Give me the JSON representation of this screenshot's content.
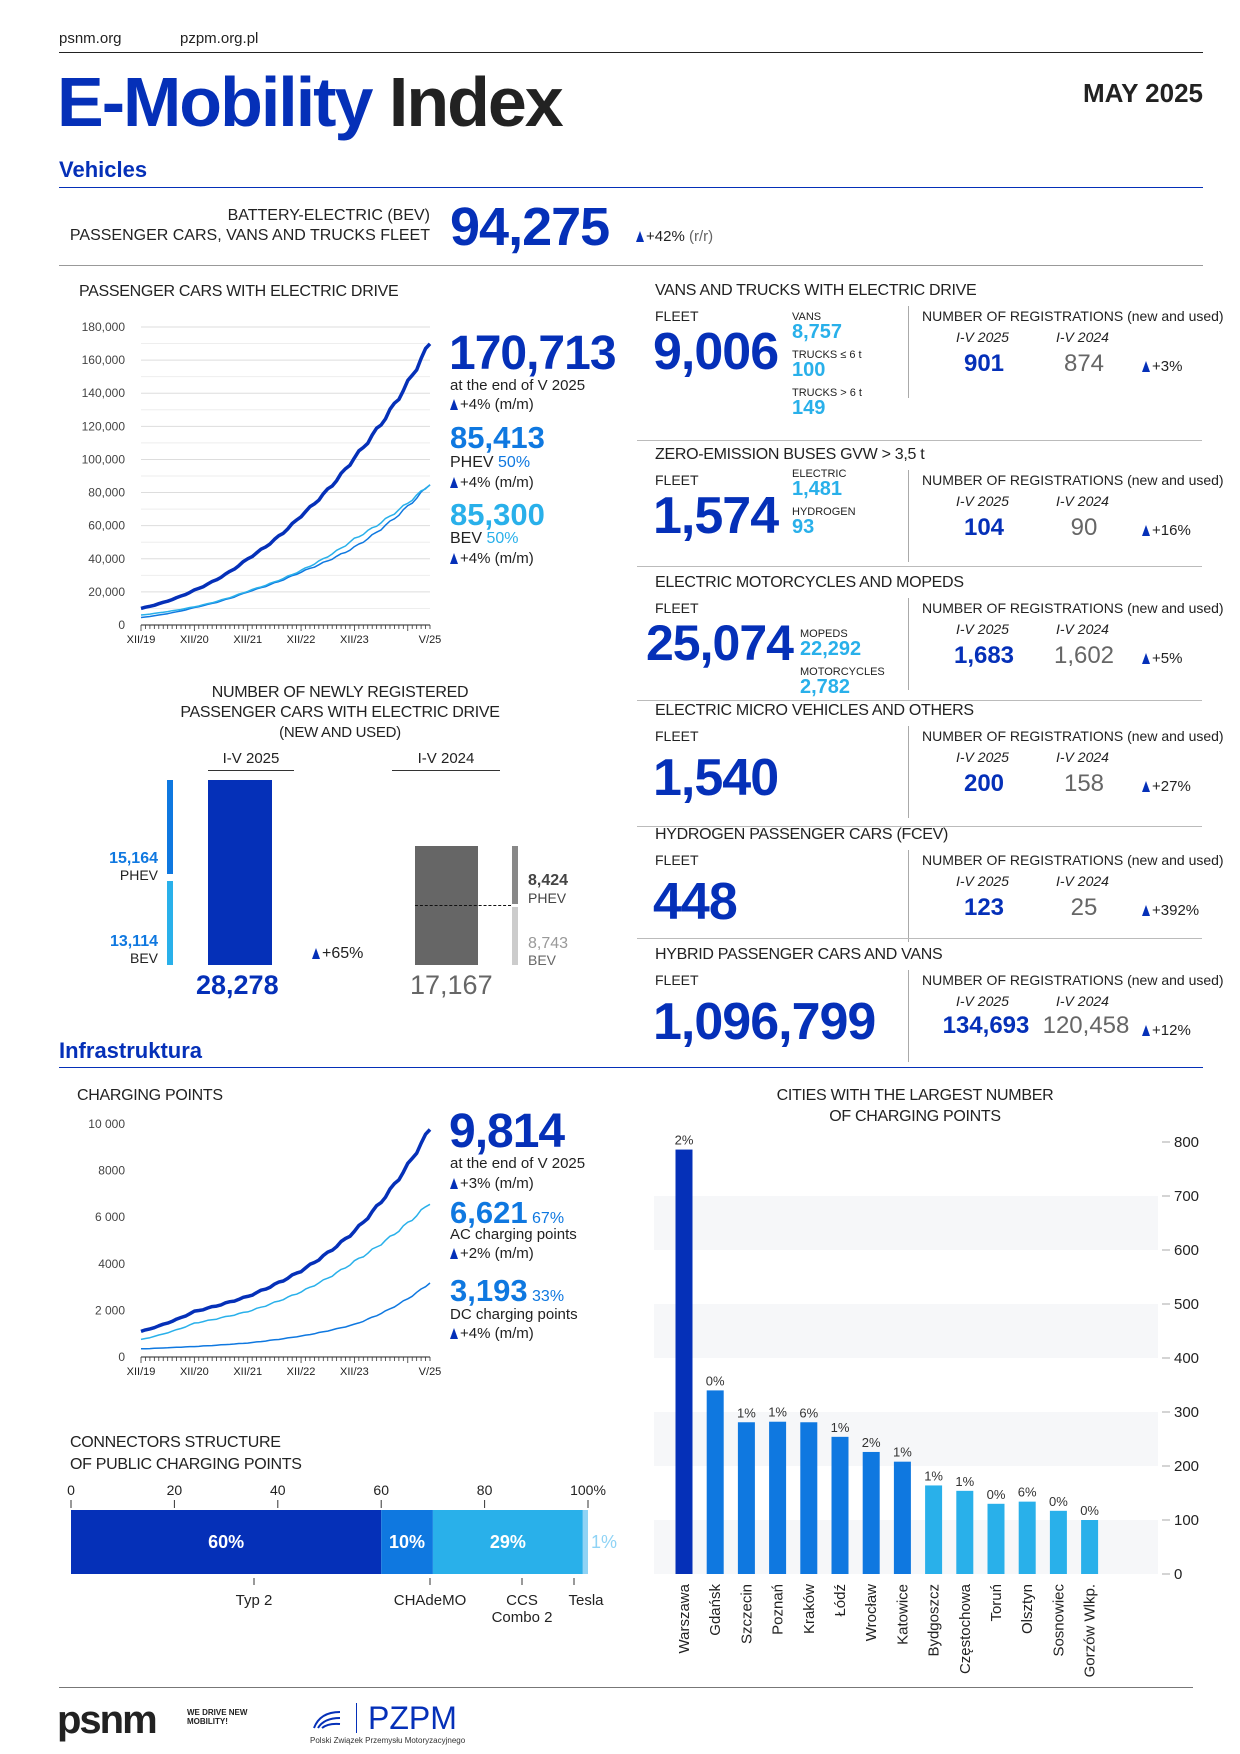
{
  "header": {
    "link1": "psnm.org",
    "link2": "pzpm.org.pl",
    "title_part1": "E-Mobility",
    "title_part2": "Index",
    "date": "MAY 2025"
  },
  "vehicles": {
    "heading": "Vehicles",
    "bev_fleet_label1": "BATTERY-ELECTRIC (BEV)",
    "bev_fleet_label2": "PASSENGER CARS, VANS AND TRUCKS FLEET",
    "bev_fleet_value": "94,275",
    "bev_fleet_change": "+42%",
    "bev_fleet_change_unit": "(r/r)"
  },
  "passenger": {
    "title": "PASSENGER CARS WITH ELECTRIC DRIVE",
    "total": "170,713",
    "total_note": "at the end of V 2025",
    "total_change": "+4% (m/m)",
    "phev": "85,413",
    "phev_label": "PHEV",
    "phev_share": "50%",
    "phev_change": "+4% (m/m)",
    "bev": "85,300",
    "bev_label": "BEV",
    "bev_share": "50%",
    "bev_change": "+4% (m/m)"
  },
  "new_reg": {
    "title1": "NUMBER OF NEWLY REGISTERED",
    "title2": "PASSENGER CARS WITH ELECTRIC DRIVE",
    "title3": "(NEW AND USED)",
    "period1": "I-V 2025",
    "period2": "I-V 2024",
    "p1_phev": "15,164",
    "p1_bev": "13,114",
    "p1_total": "28,278",
    "p1_phev_label": "PHEV",
    "p1_bev_label": "BEV",
    "change": "+65%",
    "p2_phev": "8,424",
    "p2_bev": "8,743",
    "p2_total": "17,167",
    "p2_phev_label": "PHEV",
    "p2_bev_label": "BEV"
  },
  "panels": [
    {
      "title": "VANS AND TRUCKS WITH ELECTRIC DRIVE",
      "fleet_label": "FLEET",
      "fleet": "9,006",
      "sub": [
        {
          "label": "VANS",
          "value": "8,757"
        },
        {
          "label": "TRUCKS ≤ 6 t",
          "value": "100"
        },
        {
          "label": "TRUCKS > 6 t",
          "value": "149"
        }
      ],
      "reg_label": "NUMBER OF REGISTRATIONS (new and used)",
      "y1": "I-V 2025",
      "y2": "I-V 2024",
      "v1": "901",
      "v2": "874",
      "change": "+3%"
    },
    {
      "title": "ZERO-EMISSION BUSES GVW > 3,5 t",
      "fleet_label": "FLEET",
      "fleet": "1,574",
      "sub": [
        {
          "label": "ELECTRIC",
          "value": "1,481"
        },
        {
          "label": "HYDROGEN",
          "value": "93"
        }
      ],
      "reg_label": "NUMBER OF REGISTRATIONS (new and used)",
      "y1": "I-V 2025",
      "y2": "I-V 2024",
      "v1": "104",
      "v2": "90",
      "change": "+16%"
    },
    {
      "title": "ELECTRIC MOTORCYCLES AND MOPEDS",
      "fleet_label": "FLEET",
      "fleet": "25,074",
      "sub": [
        {
          "label": "MOPEDS",
          "value": "22,292"
        },
        {
          "label": "MOTORCYCLES",
          "value": "2,782"
        }
      ],
      "reg_label": "NUMBER OF REGISTRATIONS (new and used)",
      "y1": "I-V 2025",
      "y2": "I-V 2024",
      "v1": "1,683",
      "v2": "1,602",
      "change": "+5%"
    },
    {
      "title": "ELECTRIC MICRO VEHICLES AND OTHERS",
      "fleet_label": "FLEET",
      "fleet": "1,540",
      "sub": [],
      "reg_label": "NUMBER OF REGISTRATIONS (new and used)",
      "y1": "I-V 2025",
      "y2": "I-V 2024",
      "v1": "200",
      "v2": "158",
      "change": "+27%"
    },
    {
      "title": "HYDROGEN PASSENGER CARS (FCEV)",
      "fleet_label": "FLEET",
      "fleet": "448",
      "sub": [],
      "reg_label": "NUMBER OF REGISTRATIONS (new and used)",
      "y1": "I-V 2025",
      "y2": "I-V 2024",
      "v1": "123",
      "v2": "25",
      "change": "+392%"
    },
    {
      "title": "HYBRID PASSENGER CARS AND VANS",
      "fleet_label": "FLEET",
      "fleet": "1,096,799",
      "sub": [],
      "reg_label": "NUMBER OF REGISTRATIONS (new and used)",
      "y1": "I-V 2025",
      "y2": "I-V 2024",
      "v1": "134,693",
      "v2": "120,458",
      "change": "+12%"
    }
  ],
  "infra": {
    "heading": "Infrastruktura",
    "cp_title": "CHARGING POINTS",
    "total": "9,814",
    "total_note": "at the end of V 2025",
    "total_change": "+3% (m/m)",
    "ac": "6,621",
    "ac_share": "67%",
    "ac_label": "AC charging points",
    "ac_change": "+2% (m/m)",
    "dc": "3,193",
    "dc_share": "33%",
    "dc_label": "DC charging points",
    "dc_change": "+4% (m/m)",
    "conn_title1": "CONNECTORS STRUCTURE",
    "conn_title2": "OF PUBLIC CHARGING POINTS",
    "cities_title1": "CITIES WITH THE LARGEST NUMBER",
    "cities_title2": "OF CHARGING POINTS"
  },
  "footer": {
    "psnm_logo": "psnm",
    "psnm_tagline": "WE DRIVE NEW MOBILITY!",
    "pzpm_logo": "PZPM",
    "pzpm_sub": "Polski Związek Przemysłu Motoryzacyjnego"
  },
  "colors": {
    "dark_blue": "#0530b8",
    "mid_blue": "#0f78e0",
    "light_blue": "#29b0ea",
    "gray": "#666666"
  },
  "chart_data": [
    {
      "type": "line",
      "title": "PASSENGER CARS WITH ELECTRIC DRIVE",
      "x_ticks": [
        "XII/19",
        "XII/20",
        "XII/21",
        "XII/22",
        "XII/23",
        "V/25"
      ],
      "y_ticks": [
        "0",
        "20,000",
        "40,000",
        "60,000",
        "80,000",
        "100,000",
        "120,000",
        "140,000",
        "160,000",
        "180,000"
      ],
      "ylim": [
        0,
        180000
      ],
      "grid": true,
      "series": [
        {
          "name": "total",
          "values": [
            10000,
            21000,
            40000,
            66000,
            101000,
            170713
          ]
        },
        {
          "name": "PHEV",
          "values": [
            4500,
            10500,
            20000,
            32000,
            47000,
            85413
          ]
        },
        {
          "name": "BEV",
          "values": [
            6000,
            11000,
            20500,
            33000,
            52000,
            85300
          ]
        }
      ]
    },
    {
      "type": "line",
      "title": "CHARGING POINTS",
      "x_ticks": [
        "XII/19",
        "XII/20",
        "XII/21",
        "XII/22",
        "XII/23",
        "V/25"
      ],
      "y_ticks": [
        "0",
        "2 000",
        "4000",
        "6 000",
        "8000",
        "10 000"
      ],
      "ylim": [
        0,
        10000
      ],
      "grid": false,
      "series": [
        {
          "name": "total",
          "values": [
            1100,
            1950,
            2600,
            3700,
            5400,
            9814
          ]
        },
        {
          "name": "AC",
          "values": [
            750,
            1450,
            1950,
            2800,
            4100,
            6621
          ]
        },
        {
          "name": "DC",
          "values": [
            350,
            450,
            600,
            900,
            1400,
            3193
          ]
        }
      ]
    },
    {
      "type": "bar",
      "title": "CONNECTORS STRUCTURE OF PUBLIC CHARGING POINTS",
      "stacked": true,
      "x_ticks": [
        "0",
        "20",
        "40",
        "60",
        "80",
        "100%"
      ],
      "categories": [
        "Typ 2",
        "CHAdeMO",
        "CCS Combo 2",
        "Tesla"
      ],
      "values": [
        60,
        10,
        29,
        1
      ],
      "labels": [
        "60%",
        "10%",
        "29%",
        "1%"
      ],
      "colors": [
        "#0530b8",
        "#0f78e0",
        "#29b0ea",
        "#8fd3f5"
      ]
    },
    {
      "type": "bar",
      "title": "CITIES WITH THE LARGEST NUMBER OF CHARGING POINTS",
      "categories": [
        "Warszawa",
        "Gdańsk",
        "Szczecin",
        "Poznań",
        "Kraków",
        "Łódź",
        "Wrocław",
        "Katowice",
        "Bydgoszcz",
        "Częstochowa",
        "Toruń",
        "Olsztyn",
        "Sosnowiec",
        "Gorzów Wlkp."
      ],
      "values": [
        786,
        340,
        281,
        282,
        281,
        254,
        226,
        208,
        164,
        154,
        130,
        134,
        117,
        100
      ],
      "labels": [
        "2%",
        "0%",
        "1%",
        "1%",
        "6%",
        "1%",
        "2%",
        "1%",
        "1%",
        "1%",
        "0%",
        "6%",
        "0%",
        "0%"
      ],
      "ylim": [
        0,
        800
      ],
      "y_ticks": [
        "0",
        "100",
        "200",
        "300",
        "400",
        "500",
        "600",
        "700",
        "800"
      ],
      "y_axis": "right"
    }
  ]
}
